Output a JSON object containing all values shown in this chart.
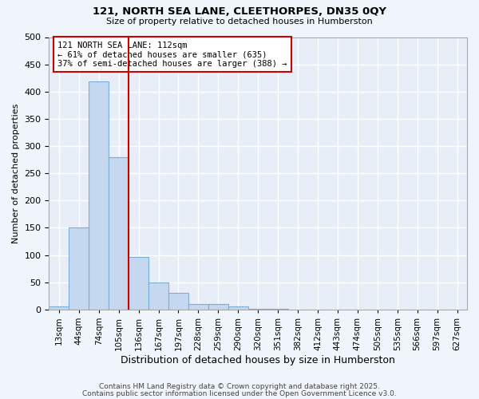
{
  "title1": "121, NORTH SEA LANE, CLEETHORPES, DN35 0QY",
  "title2": "Size of property relative to detached houses in Humberston",
  "xlabel": "Distribution of detached houses by size in Humberston",
  "ylabel": "Number of detached properties",
  "categories": [
    "13sqm",
    "44sqm",
    "74sqm",
    "105sqm",
    "136sqm",
    "167sqm",
    "197sqm",
    "228sqm",
    "259sqm",
    "290sqm",
    "320sqm",
    "351sqm",
    "382sqm",
    "412sqm",
    "443sqm",
    "474sqm",
    "505sqm",
    "535sqm",
    "566sqm",
    "597sqm",
    "627sqm"
  ],
  "values": [
    5,
    151,
    418,
    280,
    97,
    50,
    30,
    10,
    10,
    5,
    1,
    1,
    0,
    0,
    0,
    0,
    0,
    0,
    0,
    0,
    0
  ],
  "bar_color": "#c5d8f0",
  "bar_edge_color": "#7aaed6",
  "vline_x": 3.5,
  "vline_color": "#cc0000",
  "annotation_text": "121 NORTH SEA LANE: 112sqm\n← 61% of detached houses are smaller (635)\n37% of semi-detached houses are larger (388) →",
  "annotation_box_color": "#cc0000",
  "ylim": [
    0,
    500
  ],
  "yticks": [
    0,
    50,
    100,
    150,
    200,
    250,
    300,
    350,
    400,
    450,
    500
  ],
  "background_color": "#e8eef8",
  "grid_color": "#ffffff",
  "fig_background": "#f0f4fb",
  "footer1": "Contains HM Land Registry data © Crown copyright and database right 2025.",
  "footer2": "Contains public sector information licensed under the Open Government Licence v3.0."
}
